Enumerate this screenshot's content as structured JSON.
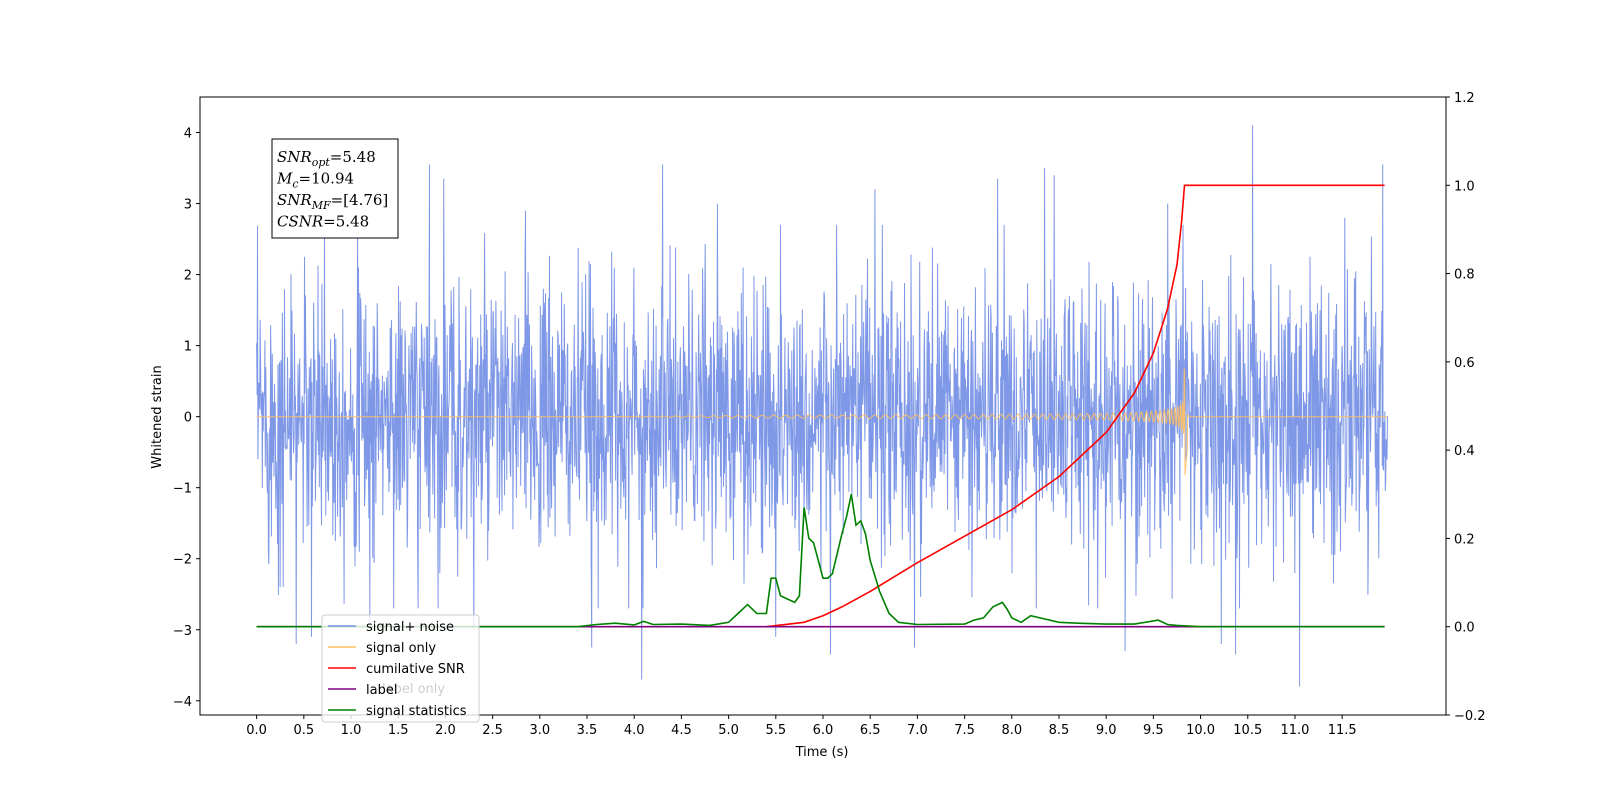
{
  "chart_data": {
    "type": "line",
    "xlabel": "Time (s)",
    "ylabel_left": "Whitened strain",
    "ylabel_right": "",
    "x_ticks": [
      "0.0",
      "0.5",
      "1.0",
      "1.5",
      "2.0",
      "2.5",
      "3.0",
      "3.5",
      "4.0",
      "4.5",
      "5.0",
      "5.5",
      "6.0",
      "6.5",
      "7.0",
      "7.5",
      "8.0",
      "8.5",
      "9.0",
      "9.5",
      "10.0",
      "10.5",
      "11.0",
      "11.5"
    ],
    "x_range": [
      -0.6,
      12.6
    ],
    "y_left_ticks": [
      "4",
      "3",
      "2",
      "1",
      "0",
      "−1",
      "−2",
      "−3",
      "−4"
    ],
    "y_left_range": [
      -4.2,
      4.5
    ],
    "y_right_ticks": [
      "1.2",
      "1.0",
      "0.8",
      "0.6",
      "0.4",
      "0.2",
      "0.0",
      "−0.2"
    ],
    "y_right_range": [
      -0.2,
      1.2
    ],
    "annotation": {
      "lines": [
        {
          "base": "SNR",
          "sub": "opt",
          "rest": "=5.48"
        },
        {
          "base": "M",
          "sub": "c",
          "rest": "=10.94"
        },
        {
          "base": "SNR",
          "sub": "MF",
          "rest": "=[4.76]"
        },
        {
          "base": "CSNR",
          "sub": "",
          "rest": "=5.48"
        }
      ]
    },
    "legend": {
      "location": "lower-left",
      "entries": [
        {
          "label": "signal+ noise",
          "color": "#7792e6"
        },
        {
          "label": "signal only",
          "color": "#ffbf60"
        },
        {
          "label": "cumilative SNR",
          "color": "#ff0000"
        },
        {
          "label": "label",
          "color": "#800080"
        },
        {
          "label": "signal statistics",
          "color": "#008000"
        }
      ],
      "hidden_behind_text": "label only"
    },
    "series": [
      {
        "name": "signal+ noise",
        "axis": "left",
        "kind": "noise",
        "x_range": [
          0.0,
          11.98
        ],
        "std": 0.95,
        "spikes": [
          {
            "x": 0.25,
            "y": -2.4
          },
          {
            "x": 0.42,
            "y": -3.2
          },
          {
            "x": 0.58,
            "y": -3.1
          },
          {
            "x": 0.72,
            "y": 2.8
          },
          {
            "x": 1.2,
            "y": -2.9
          },
          {
            "x": 1.83,
            "y": 3.55
          },
          {
            "x": 1.98,
            "y": 3.35
          },
          {
            "x": 2.3,
            "y": -3.0
          },
          {
            "x": 2.85,
            "y": 2.9
          },
          {
            "x": 3.55,
            "y": -3.25
          },
          {
            "x": 4.08,
            "y": -3.7
          },
          {
            "x": 4.3,
            "y": 3.55
          },
          {
            "x": 4.88,
            "y": 3.0
          },
          {
            "x": 5.5,
            "y": -3.1
          },
          {
            "x": 6.08,
            "y": -3.35
          },
          {
            "x": 6.55,
            "y": 3.2
          },
          {
            "x": 6.97,
            "y": -3.25
          },
          {
            "x": 7.85,
            "y": 3.35
          },
          {
            "x": 8.35,
            "y": 3.5
          },
          {
            "x": 8.45,
            "y": 3.4
          },
          {
            "x": 9.2,
            "y": -3.3
          },
          {
            "x": 9.65,
            "y": 3.0
          },
          {
            "x": 10.22,
            "y": -3.2
          },
          {
            "x": 10.37,
            "y": -3.35
          },
          {
            "x": 10.55,
            "y": 4.1
          },
          {
            "x": 11.05,
            "y": -3.8
          },
          {
            "x": 11.53,
            "y": 2.8
          },
          {
            "x": 11.93,
            "y": 3.55
          }
        ]
      },
      {
        "name": "signal only",
        "axis": "left",
        "kind": "chirp",
        "x_range": [
          0.0,
          11.98
        ],
        "merger_x": 9.83,
        "peak_amplitude": 0.67,
        "trough_amplitude": -0.9
      },
      {
        "name": "cumilative SNR",
        "axis": "right",
        "kind": "line",
        "x": [
          5.4,
          5.8,
          6.0,
          6.2,
          6.5,
          7.0,
          7.5,
          8.0,
          8.5,
          9.0,
          9.3,
          9.5,
          9.65,
          9.75,
          9.8,
          9.83,
          9.85,
          11.95
        ],
        "y": [
          0.0,
          0.01,
          0.025,
          0.045,
          0.08,
          0.145,
          0.205,
          0.265,
          0.34,
          0.44,
          0.53,
          0.62,
          0.72,
          0.82,
          0.92,
          1.0,
          1.0,
          1.0
        ]
      },
      {
        "name": "label",
        "axis": "right",
        "kind": "line",
        "x": [
          0.0,
          11.95
        ],
        "y": [
          0.0,
          0.0
        ]
      },
      {
        "name": "signal statistics",
        "axis": "right",
        "kind": "line",
        "x": [
          0.0,
          3.4,
          3.6,
          3.8,
          4.0,
          4.1,
          4.2,
          4.5,
          4.8,
          5.0,
          5.1,
          5.2,
          5.3,
          5.4,
          5.45,
          5.5,
          5.55,
          5.6,
          5.7,
          5.75,
          5.8,
          5.85,
          5.9,
          5.95,
          6.0,
          6.05,
          6.1,
          6.2,
          6.25,
          6.3,
          6.35,
          6.4,
          6.45,
          6.5,
          6.6,
          6.7,
          6.8,
          7.0,
          7.5,
          7.6,
          7.7,
          7.8,
          7.9,
          7.95,
          8.0,
          8.1,
          8.2,
          8.3,
          8.5,
          8.7,
          9.0,
          9.3,
          9.55,
          9.65,
          9.75,
          10.0,
          11.95
        ],
        "y": [
          0.0,
          0.0,
          0.005,
          0.008,
          0.004,
          0.012,
          0.005,
          0.006,
          0.003,
          0.01,
          0.03,
          0.05,
          0.03,
          0.03,
          0.11,
          0.11,
          0.07,
          0.065,
          0.055,
          0.07,
          0.27,
          0.2,
          0.19,
          0.15,
          0.11,
          0.11,
          0.12,
          0.21,
          0.25,
          0.3,
          0.23,
          0.24,
          0.21,
          0.15,
          0.08,
          0.03,
          0.01,
          0.005,
          0.006,
          0.015,
          0.02,
          0.045,
          0.055,
          0.04,
          0.02,
          0.01,
          0.025,
          0.02,
          0.01,
          0.008,
          0.006,
          0.006,
          0.015,
          0.005,
          0.003,
          0.0,
          0.0
        ]
      }
    ]
  }
}
